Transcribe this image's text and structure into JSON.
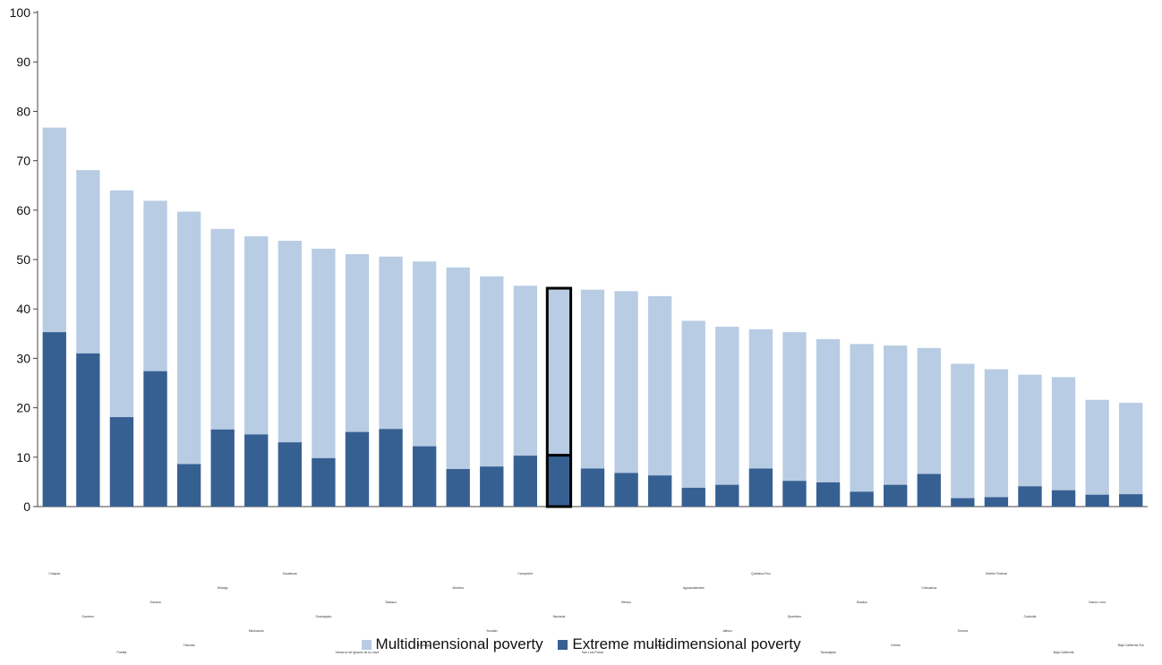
{
  "chart_data": {
    "type": "bar",
    "stacking": "overlay",
    "title": "",
    "xlabel": "",
    "ylabel": "",
    "ylim": [
      0,
      100
    ],
    "yticks": [
      0,
      10,
      20,
      30,
      40,
      50,
      60,
      70,
      80,
      90,
      100
    ],
    "grid": false,
    "legend_position": "bottom",
    "highlighted_category": "Nacional",
    "categories": [
      "Chiapas",
      "Guerrero",
      "Puebla",
      "Oaxaca",
      "Tlaxcala",
      "Hidalgo",
      "Michoacán",
      "Zacatecas",
      "Guanajuato",
      "Veracruz de Ignacio de la Llave",
      "Tabasco",
      "Durango",
      "Morelos",
      "Yucatán",
      "Campeche",
      "Nacional",
      "San Luis Potosí",
      "México",
      "Nayarit",
      "Aguascalientes",
      "Jalisco",
      "Quintana Roo",
      "Querétaro",
      "Tamaulipas",
      "Sinaloa",
      "Colima",
      "Chihuahua",
      "Sonora",
      "Distrito Federal",
      "Coahuila",
      "Baja California",
      "Nuevo León",
      "Baja California Sur"
    ],
    "series": [
      {
        "name": "Multidimensional poverty",
        "color": "#b8cce4",
        "values": [
          76.7,
          68.1,
          64.0,
          61.9,
          59.7,
          56.2,
          54.7,
          53.8,
          52.2,
          51.1,
          50.6,
          49.6,
          48.4,
          46.6,
          44.7,
          44.2,
          43.9,
          43.6,
          42.6,
          37.6,
          36.4,
          35.9,
          35.3,
          33.9,
          32.9,
          32.6,
          32.1,
          28.9,
          27.8,
          26.7,
          26.2,
          21.6,
          21.0
        ]
      },
      {
        "name": "Extreme multidimensional poverty",
        "color": "#366092",
        "values": [
          35.3,
          31.0,
          18.1,
          27.4,
          8.6,
          15.6,
          14.6,
          13.0,
          9.8,
          15.1,
          15.7,
          12.2,
          7.6,
          8.1,
          10.3,
          10.4,
          7.7,
          6.8,
          6.3,
          3.8,
          4.4,
          7.7,
          5.2,
          4.9,
          3.0,
          4.4,
          6.6,
          1.7,
          1.9,
          4.1,
          3.3,
          2.4,
          2.5
        ]
      }
    ]
  }
}
